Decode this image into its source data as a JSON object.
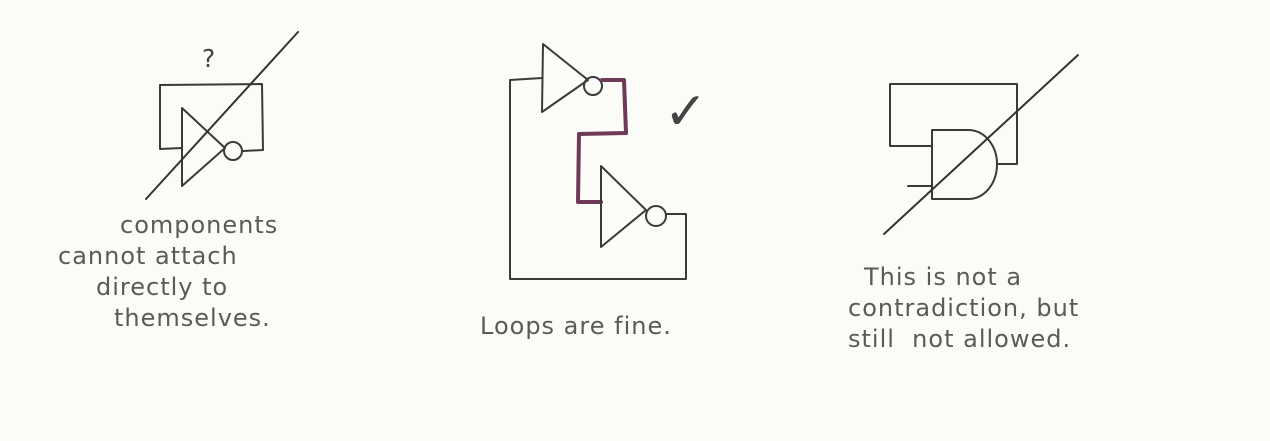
{
  "panels": [
    {
      "id": "self-attach",
      "verdict": "not-allowed",
      "mark": "?",
      "caption_lines": [
        "components",
        "cannot attach",
        "directly to",
        "themselves."
      ]
    },
    {
      "id": "loops",
      "verdict": "allowed",
      "mark": "✓",
      "caption_lines": [
        "Loops are fine."
      ]
    },
    {
      "id": "and-gate",
      "verdict": "not-allowed",
      "caption_lines": [
        "This is not a",
        "contradiction, but",
        "still  not allowed."
      ]
    }
  ],
  "colors": {
    "ink": "#3a3a3a",
    "highlight": "#6e3a57",
    "paper": "#fbfbf8"
  }
}
